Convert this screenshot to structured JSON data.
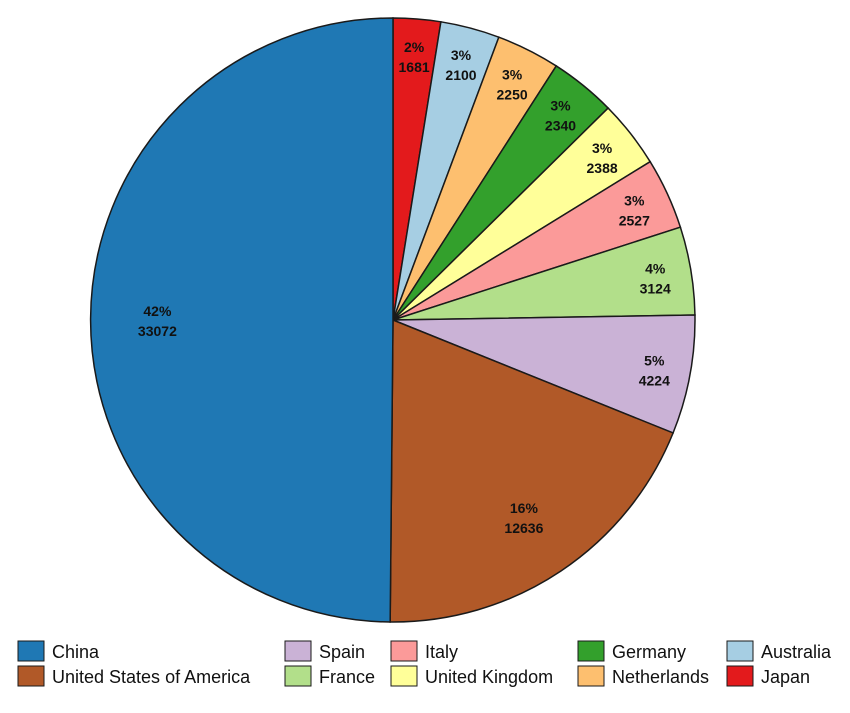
{
  "chart_data": {
    "type": "pie",
    "title": "",
    "slices": [
      {
        "label": "Japan",
        "value": 1681,
        "percent": "2%",
        "color": "#e31a1c"
      },
      {
        "label": "Australia",
        "value": 2100,
        "percent": "3%",
        "color": "#a6cee3"
      },
      {
        "label": "Netherlands",
        "value": 2250,
        "percent": "3%",
        "color": "#fdbf6f"
      },
      {
        "label": "Germany",
        "value": 2340,
        "percent": "3%",
        "color": "#33a02c"
      },
      {
        "label": "United Kingdom",
        "value": 2388,
        "percent": "3%",
        "color": "#ffff99"
      },
      {
        "label": "Italy",
        "value": 2527,
        "percent": "3%",
        "color": "#fb9a99"
      },
      {
        "label": "France",
        "value": 3124,
        "percent": "4%",
        "color": "#b2df8a"
      },
      {
        "label": "Spain",
        "value": 4224,
        "percent": "5%",
        "color": "#cab2d6"
      },
      {
        "label": "United States of America",
        "value": 12636,
        "percent": "16%",
        "color": "#b15928"
      },
      {
        "label": "China",
        "value": 33072,
        "percent": "42%",
        "color": "#1f78b4"
      }
    ],
    "legend": {
      "placement": "bottom",
      "order": [
        "China",
        "United States of America",
        "Spain",
        "France",
        "Italy",
        "United Kingdom",
        "Germany",
        "Netherlands",
        "Australia",
        "Japan"
      ]
    }
  }
}
